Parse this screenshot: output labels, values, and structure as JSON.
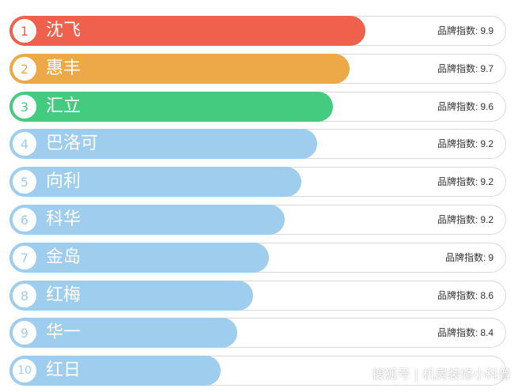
{
  "chart_data": {
    "type": "bar",
    "orientation": "horizontal",
    "value_label_prefix": "品牌指数:",
    "max_value": 9.9,
    "categories": [
      "沈飞",
      "惠丰",
      "汇立",
      "巴洛可",
      "向利",
      "科华",
      "金岛",
      "红梅",
      "华一",
      "红日"
    ],
    "ranks": [
      "1",
      "2",
      "3",
      "4",
      "5",
      "6",
      "7",
      "8",
      "9",
      "10"
    ],
    "values": [
      9.9,
      9.7,
      9.6,
      9.2,
      9.2,
      9.2,
      9,
      8.6,
      8.4,
      null
    ],
    "value_labels": [
      "9.9",
      "9.7",
      "9.6",
      "9.2",
      "9.2",
      "9.2",
      "9",
      "8.6",
      "8.4",
      ""
    ],
    "bar_fill_fraction": [
      0.716,
      0.684,
      0.651,
      0.619,
      0.587,
      0.554,
      0.522,
      0.49,
      0.458,
      0.425
    ],
    "colors": [
      "#f0614d",
      "#eda848",
      "#45cb80",
      "#9fcdee",
      "#9fcdee",
      "#9fcdee",
      "#9fcdee",
      "#9fcdee",
      "#9fcdee",
      "#9fcdee"
    ]
  },
  "watermark": "搜狐号 | 机房装修小科普"
}
